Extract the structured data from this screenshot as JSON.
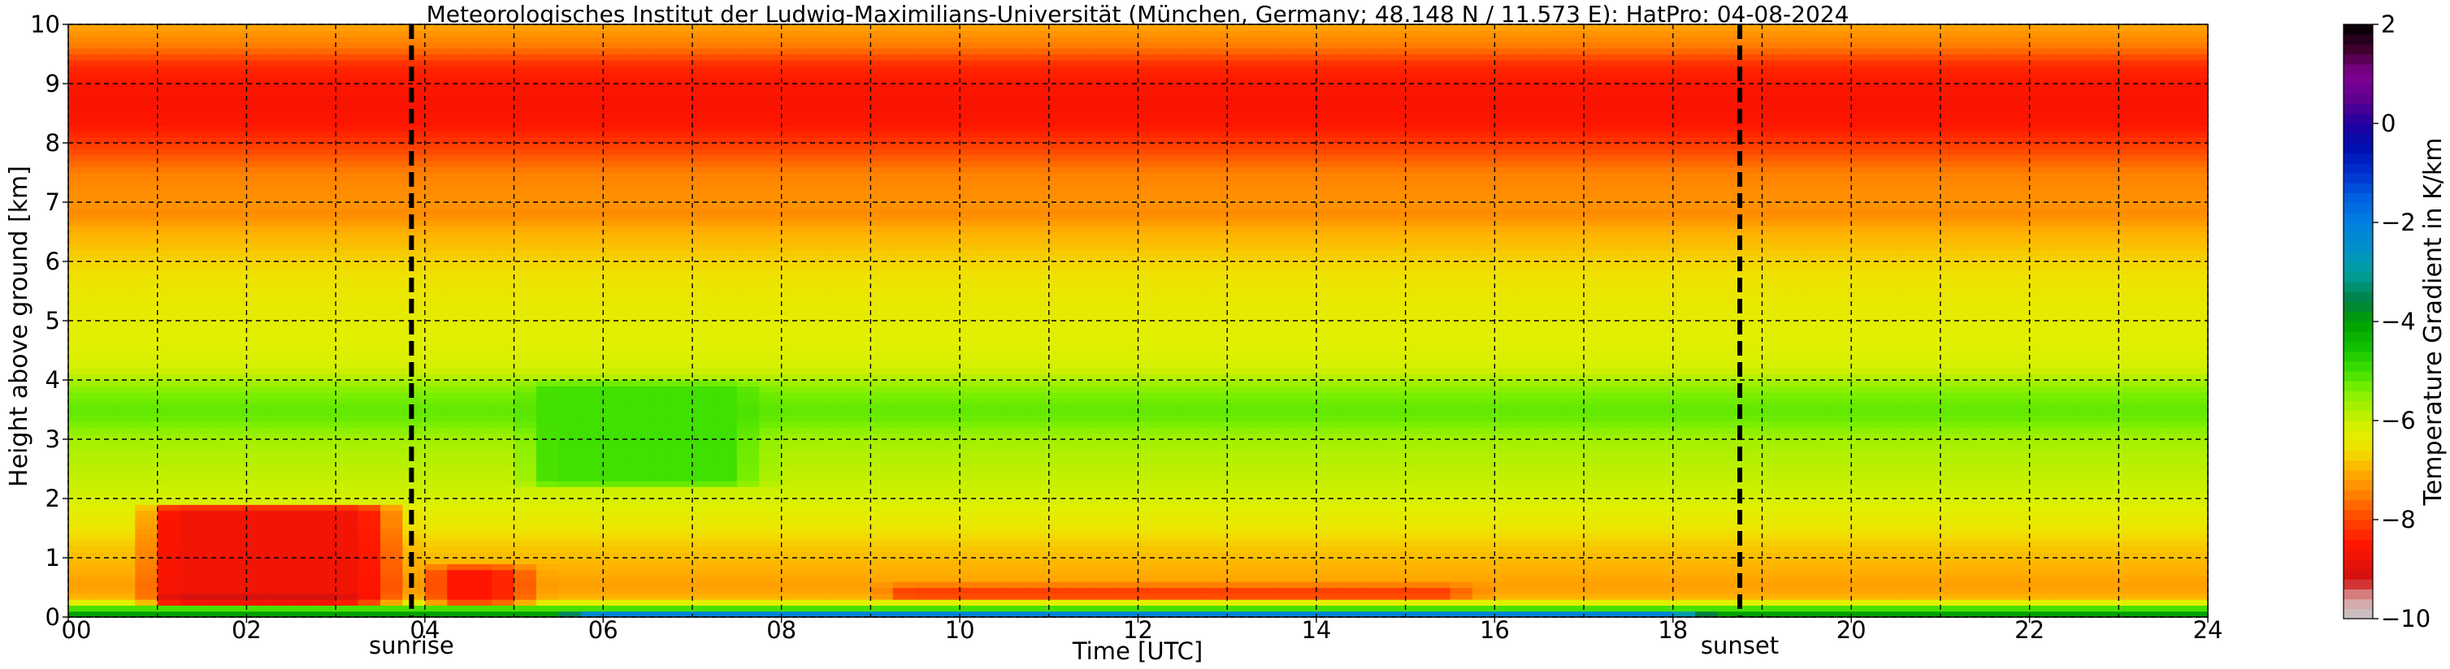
{
  "chart_data": {
    "type": "heatmap",
    "title": "Meteorologisches Institut der Ludwig-Maximilians-Universität (München, Germany; 48.148 N / 11.573 E):    HatPro: 04-08-2024",
    "xlabel": "Time [UTC]",
    "ylabel": "Height above ground [km]",
    "xlim": [
      0,
      24
    ],
    "ylim": [
      0,
      10
    ],
    "x_ticks": [
      0,
      2,
      4,
      6,
      8,
      10,
      12,
      14,
      16,
      18,
      20,
      22,
      24
    ],
    "x_tick_labels": [
      "00",
      "02",
      "04",
      "06",
      "08",
      "10",
      "12",
      "14",
      "16",
      "18",
      "20",
      "22",
      "24"
    ],
    "y_ticks": [
      0,
      1,
      2,
      3,
      4,
      5,
      6,
      7,
      8,
      9,
      10
    ],
    "y_tick_labels": [
      "0",
      "1",
      "2",
      "3",
      "4",
      "5",
      "6",
      "7",
      "8",
      "9",
      "10"
    ],
    "grid": true,
    "grid_x": [
      0,
      1,
      2,
      3,
      4,
      5,
      6,
      7,
      8,
      9,
      10,
      11,
      12,
      13,
      14,
      15,
      16,
      17,
      18,
      19,
      20,
      21,
      22,
      23,
      24
    ],
    "markers": [
      {
        "name": "sunrise",
        "x": 3.85
      },
      {
        "name": "sunset",
        "x": 18.75
      }
    ],
    "colorbar": {
      "label": "Temperature Gradient in K/km",
      "range": [
        -10,
        2
      ],
      "ticks": [
        2,
        0,
        -2,
        -4,
        -6,
        -8,
        -10
      ],
      "tick_labels": [
        "2",
        "0",
        "−2",
        "−4",
        "−6",
        "−8",
        "−10"
      ],
      "colors": [
        {
          "value": -10,
          "color": "#c8c8c8"
        },
        {
          "value": -9.6,
          "color": "#d8a0a0"
        },
        {
          "value": -9.2,
          "color": "#d01010"
        },
        {
          "value": -8.5,
          "color": "#ff1500"
        },
        {
          "value": -8.0,
          "color": "#ff4500"
        },
        {
          "value": -7.5,
          "color": "#ff8000"
        },
        {
          "value": -7.0,
          "color": "#ffb000"
        },
        {
          "value": -6.6,
          "color": "#f0e000"
        },
        {
          "value": -6.2,
          "color": "#e0f000"
        },
        {
          "value": -5.8,
          "color": "#b0f000"
        },
        {
          "value": -5.4,
          "color": "#80f000"
        },
        {
          "value": -5.0,
          "color": "#40e000"
        },
        {
          "value": -4.5,
          "color": "#10c000"
        },
        {
          "value": -4.0,
          "color": "#00a000"
        },
        {
          "value": -3.6,
          "color": "#008040"
        },
        {
          "value": -3.0,
          "color": "#00a0a0"
        },
        {
          "value": -2.5,
          "color": "#0090c8"
        },
        {
          "value": -2.0,
          "color": "#0080e0"
        },
        {
          "value": -1.5,
          "color": "#0060e0"
        },
        {
          "value": -1.0,
          "color": "#0030d0"
        },
        {
          "value": -0.5,
          "color": "#0010b0"
        },
        {
          "value": 0.0,
          "color": "#2000a0"
        },
        {
          "value": 0.5,
          "color": "#600090"
        },
        {
          "value": 1.0,
          "color": "#800090"
        },
        {
          "value": 1.5,
          "color": "#400030"
        },
        {
          "value": 2.0,
          "color": "#000000"
        }
      ]
    },
    "profile_by_height": [
      {
        "h": 0.0,
        "v": -3.5
      },
      {
        "h": 0.1,
        "v": -4.5
      },
      {
        "h": 0.2,
        "v": -5.6
      },
      {
        "h": 0.3,
        "v": -6.9
      },
      {
        "h": 0.5,
        "v": -7.2
      },
      {
        "h": 0.8,
        "v": -7.0
      },
      {
        "h": 1.2,
        "v": -6.8
      },
      {
        "h": 1.6,
        "v": -6.4
      },
      {
        "h": 2.0,
        "v": -6.1
      },
      {
        "h": 2.5,
        "v": -5.9
      },
      {
        "h": 3.0,
        "v": -5.7
      },
      {
        "h": 3.3,
        "v": -5.3
      },
      {
        "h": 3.5,
        "v": -5.2
      },
      {
        "h": 3.8,
        "v": -5.4
      },
      {
        "h": 4.2,
        "v": -6.1
      },
      {
        "h": 5.0,
        "v": -6.3
      },
      {
        "h": 5.6,
        "v": -6.5
      },
      {
        "h": 6.0,
        "v": -6.7
      },
      {
        "h": 6.5,
        "v": -7.0
      },
      {
        "h": 6.8,
        "v": -7.4
      },
      {
        "h": 7.0,
        "v": -7.3
      },
      {
        "h": 7.5,
        "v": -7.5
      },
      {
        "h": 7.9,
        "v": -8.0
      },
      {
        "h": 8.3,
        "v": -8.5
      },
      {
        "h": 8.7,
        "v": -8.6
      },
      {
        "h": 9.0,
        "v": -8.5
      },
      {
        "h": 9.3,
        "v": -8.3
      },
      {
        "h": 9.6,
        "v": -7.6
      },
      {
        "h": 10.0,
        "v": -7.1
      }
    ],
    "features": [
      {
        "name": "nocturnal inversion",
        "t0": 0.75,
        "t1": 3.9,
        "h0": 0.2,
        "h1": 1.95,
        "v": -8.7
      },
      {
        "name": "inversion tail",
        "t0": 3.9,
        "t1": 5.4,
        "h0": 0.2,
        "h1": 0.9,
        "v": -8.5
      },
      {
        "name": "strong near-surface inversion",
        "t0": 0.85,
        "t1": 3.5,
        "h0": 0.25,
        "h1": 0.38,
        "v": -9.6
      },
      {
        "name": "surface unstable layer",
        "t0": 5.5,
        "t1": 18.5,
        "h0": 0.0,
        "h1": 0.15,
        "v": -1.5
      },
      {
        "name": "midday red layer",
        "t0": 9.0,
        "t1": 16.0,
        "h0": 0.3,
        "h1": 0.55,
        "v": -8.3
      },
      {
        "name": "green band morning",
        "t0": 5.0,
        "t1": 8.0,
        "h0": 2.2,
        "h1": 4.0,
        "v": -5.0
      }
    ]
  }
}
